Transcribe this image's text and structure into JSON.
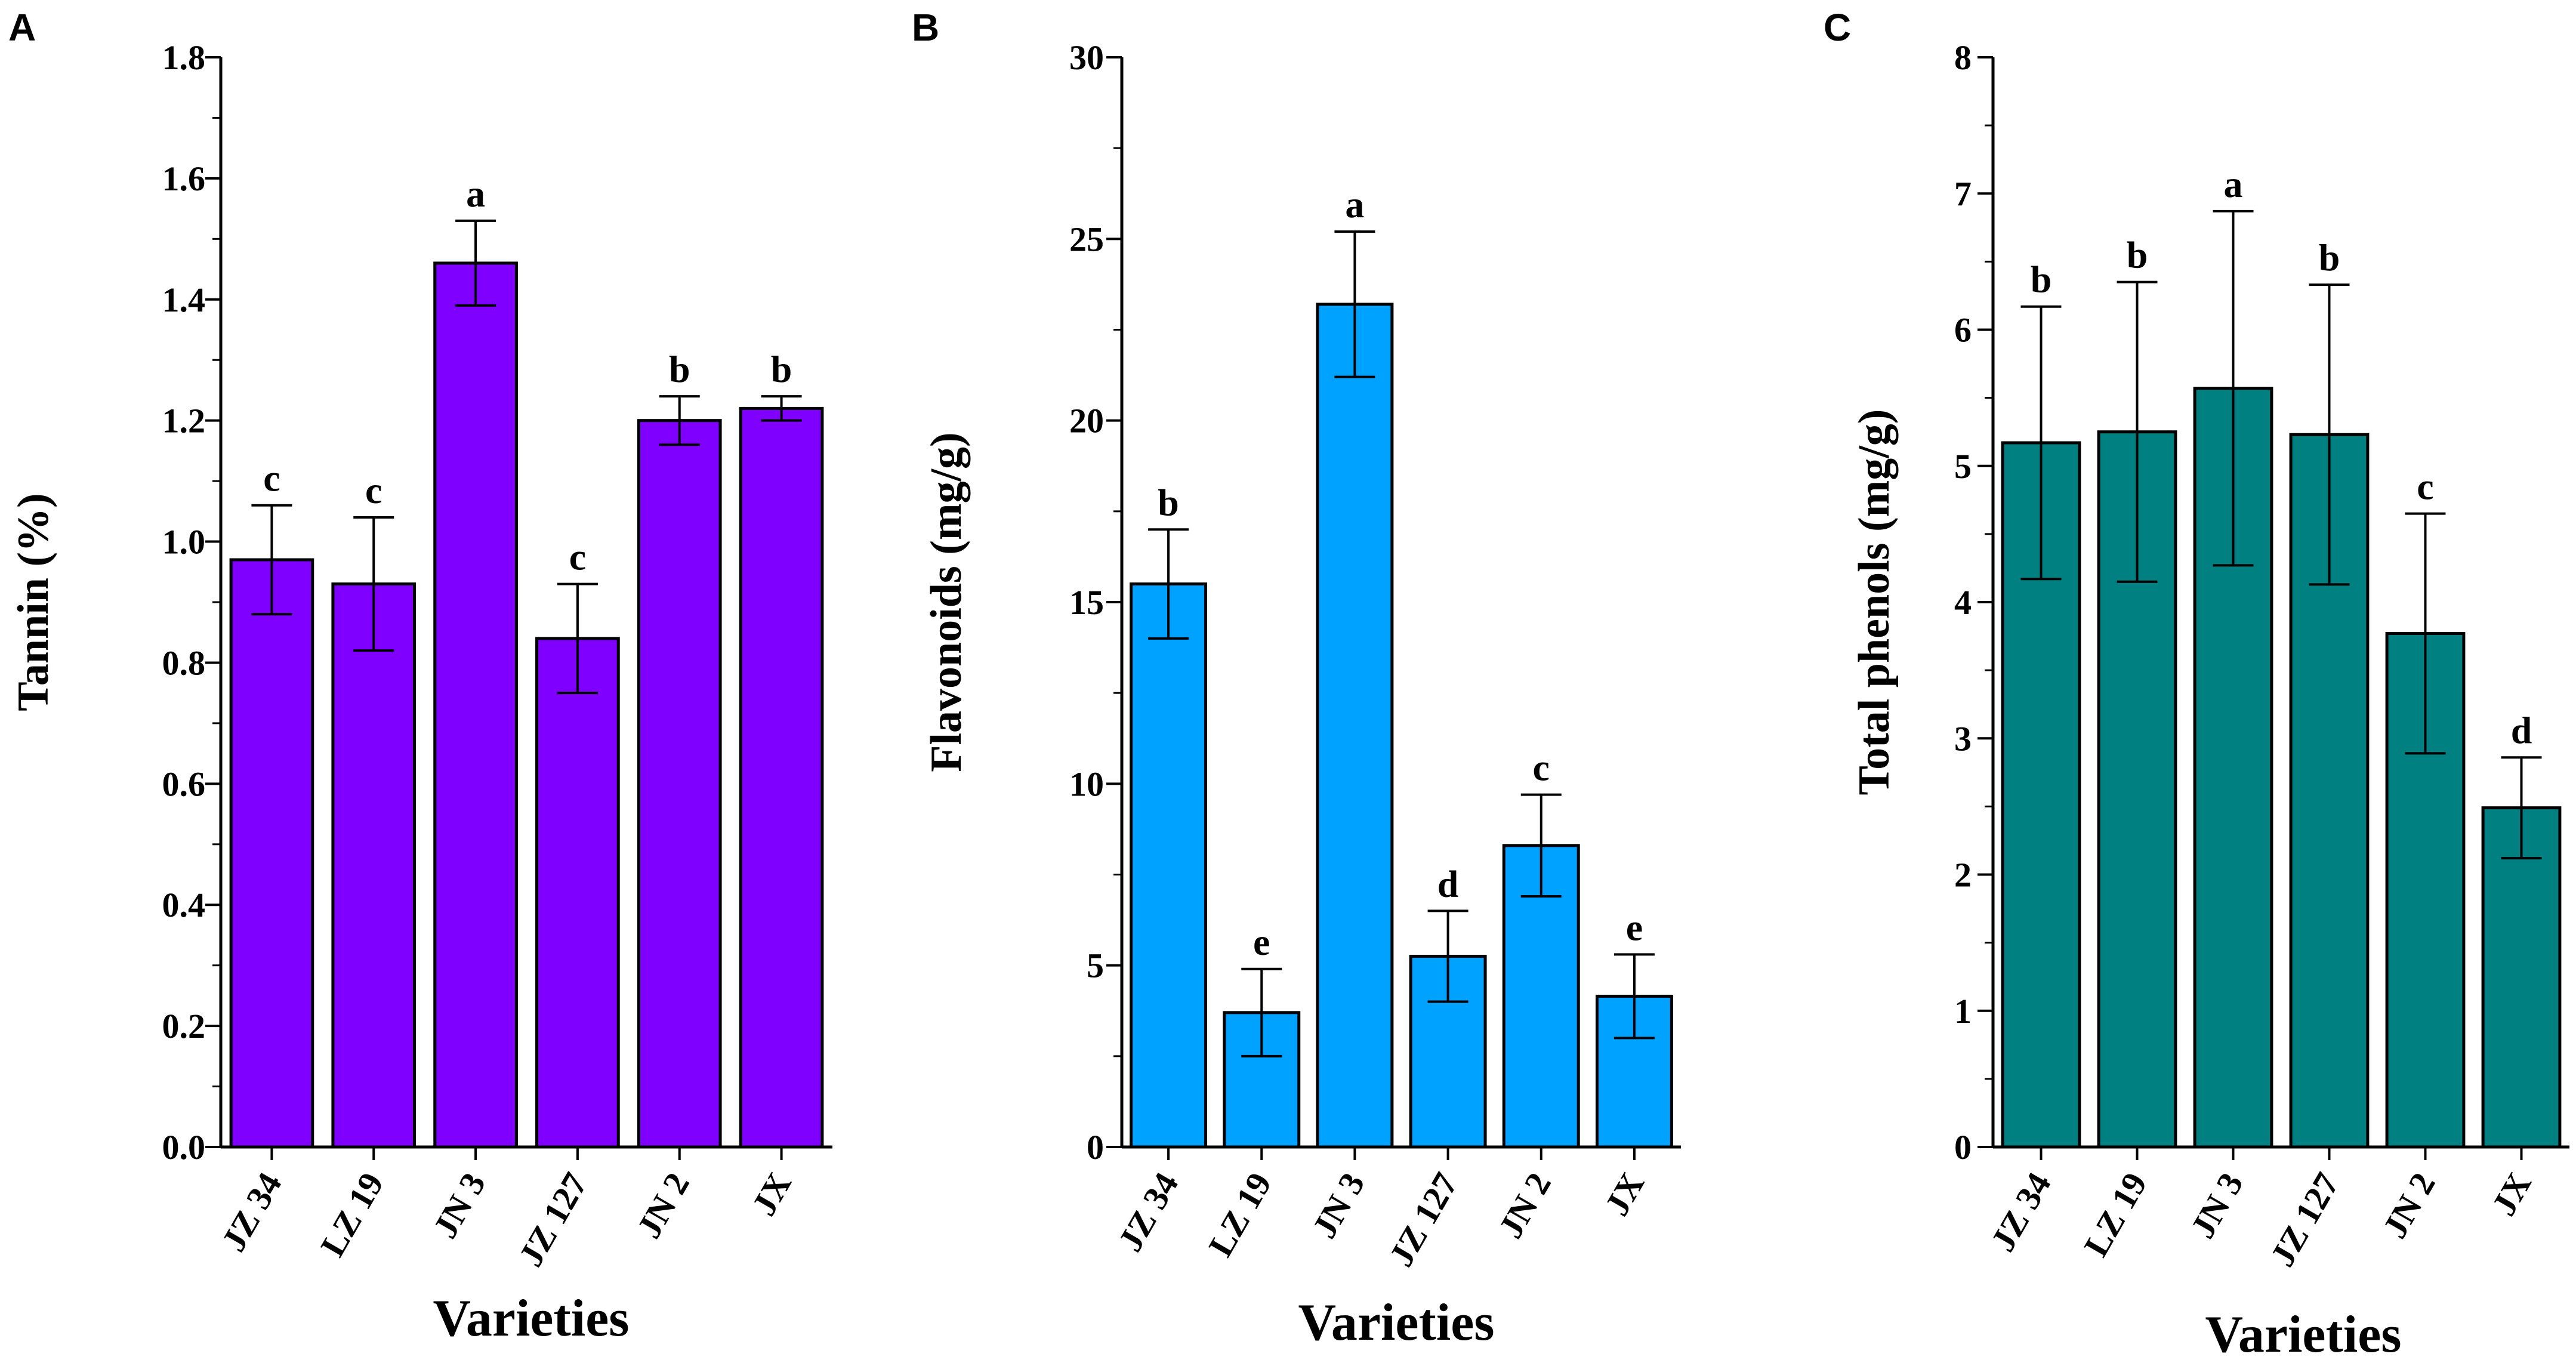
{
  "figure": {
    "panels": [
      {
        "letter": "A"
      },
      {
        "letter": "B"
      },
      {
        "letter": "C"
      }
    ]
  },
  "chart_data": [
    {
      "type": "bar",
      "panel": "A",
      "title": "",
      "xlabel": "Varieties",
      "ylabel": "Tannin (%)",
      "categories": [
        "JZ 34",
        "LZ 19",
        "JN 3",
        "JZ 127",
        "JN 2",
        "JX"
      ],
      "values": [
        0.97,
        0.93,
        1.46,
        0.84,
        1.2,
        1.22
      ],
      "errors": [
        0.09,
        0.11,
        0.07,
        0.09,
        0.04,
        0.02
      ],
      "significance": [
        "c",
        "c",
        "a",
        "c",
        "b",
        "b"
      ],
      "ylim": [
        0,
        1.8
      ],
      "yticks": [
        0.0,
        0.2,
        0.4,
        0.6,
        0.8,
        1.0,
        1.2,
        1.4,
        1.6,
        1.8
      ],
      "ytick_labels": [
        "0.0",
        "0.2",
        "0.4",
        "0.6",
        "0.8",
        "1.0",
        "1.2",
        "1.4",
        "1.6",
        "1.8"
      ],
      "color": "#7f00ff"
    },
    {
      "type": "bar",
      "panel": "B",
      "title": "",
      "xlabel": "Varieties",
      "ylabel": "Flavonoids (mg/g)",
      "categories": [
        "JZ 34",
        "LZ 19",
        "JN 3",
        "JZ 127",
        "JN 2",
        "JX"
      ],
      "values": [
        15.5,
        3.7,
        23.2,
        5.25,
        8.3,
        4.15
      ],
      "errors": [
        1.5,
        1.2,
        2.0,
        1.25,
        1.4,
        1.15
      ],
      "significance": [
        "b",
        "e",
        "a",
        "d",
        "c",
        "e"
      ],
      "ylim": [
        0,
        30
      ],
      "yticks": [
        0,
        5,
        10,
        15,
        20,
        25,
        30
      ],
      "ytick_labels": [
        "0",
        "5",
        "10",
        "15",
        "20",
        "25",
        "30"
      ],
      "color": "#00a2ff"
    },
    {
      "type": "bar",
      "panel": "C",
      "title": "",
      "xlabel": "Varieties",
      "ylabel": "Total phenols (mg/g)",
      "categories": [
        "JZ 34",
        "LZ 19",
        "JN 3",
        "JZ 127",
        "JN 2",
        "JX"
      ],
      "values": [
        5.17,
        5.25,
        5.57,
        5.23,
        3.77,
        2.49
      ],
      "errors": [
        1.0,
        1.1,
        1.3,
        1.1,
        0.88,
        0.37
      ],
      "significance": [
        "b",
        "b",
        "a",
        "b",
        "c",
        "d"
      ],
      "ylim": [
        0,
        8
      ],
      "yticks": [
        0,
        1,
        2,
        3,
        4,
        5,
        6,
        7,
        8
      ],
      "ytick_labels": [
        "0",
        "1",
        "2",
        "3",
        "4",
        "5",
        "6",
        "7",
        "8"
      ],
      "color": "#008080"
    }
  ]
}
